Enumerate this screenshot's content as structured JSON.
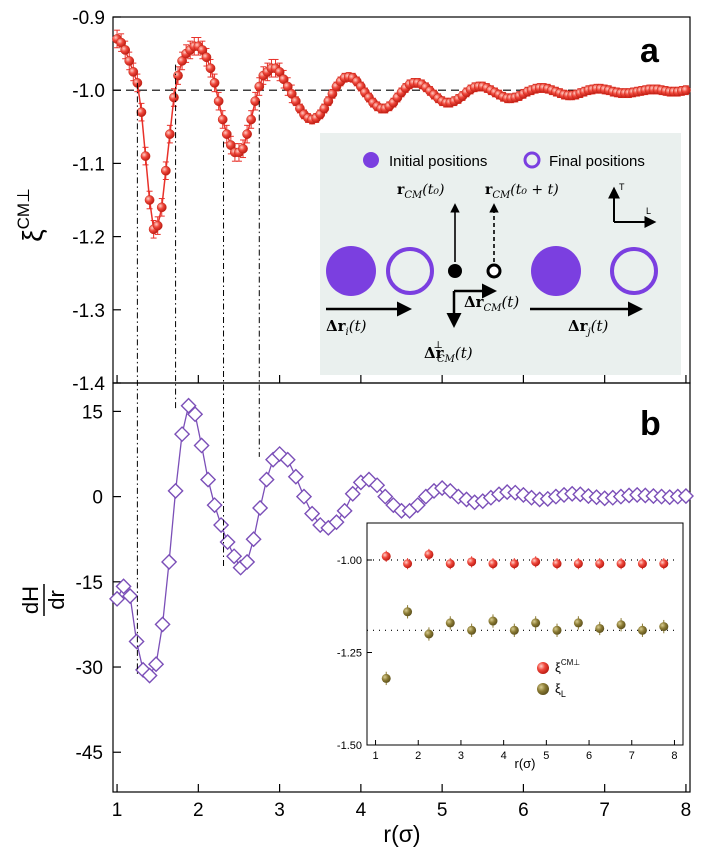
{
  "chart_data": [
    {
      "panel_label": "a",
      "type": "line",
      "ylabel": "ξ",
      "ylabel_sup": "CM⊥",
      "xlim": [
        0.95,
        8.05
      ],
      "ylim": [
        -1.4,
        -0.9
      ],
      "y_ticks": [
        "-0.9",
        "-1.0",
        "-1.1",
        "-1.2",
        "-1.3",
        "-1.4"
      ],
      "reference_line": -1.0,
      "series": [
        {
          "name": "ξCM⊥",
          "color": "#e8312a",
          "x": [
            1.0,
            1.05,
            1.1,
            1.15,
            1.2,
            1.25,
            1.3,
            1.35,
            1.4,
            1.45,
            1.5,
            1.55,
            1.6,
            1.65,
            1.7,
            1.75,
            1.8,
            1.85,
            1.9,
            1.95,
            2.0,
            2.05,
            2.1,
            2.15,
            2.2,
            2.25,
            2.3,
            2.35,
            2.4,
            2.45,
            2.5,
            2.55,
            2.6,
            2.65,
            2.7,
            2.75,
            2.8,
            2.85,
            2.9,
            2.95,
            3.0,
            3.05,
            3.1,
            3.15,
            3.2,
            3.25,
            3.3,
            3.35,
            3.4,
            3.45,
            3.5,
            3.55,
            3.6,
            3.65,
            3.7,
            3.75,
            3.8,
            3.85,
            3.9,
            3.95,
            4.0,
            4.05,
            4.1,
            4.15,
            4.2,
            4.25,
            4.3,
            4.35,
            4.4,
            4.45,
            4.5,
            4.55,
            4.6,
            4.65,
            4.7,
            4.75,
            4.8,
            4.85,
            4.9,
            4.95,
            5.0,
            5.05,
            5.1,
            5.15,
            5.2,
            5.25,
            5.3,
            5.35,
            5.4,
            5.45,
            5.5,
            5.55,
            5.6,
            5.65,
            5.7,
            5.75,
            5.8,
            5.85,
            5.9,
            5.95,
            6.0,
            6.05,
            6.1,
            6.15,
            6.2,
            6.25,
            6.3,
            6.35,
            6.4,
            6.45,
            6.5,
            6.55,
            6.6,
            6.65,
            6.7,
            6.75,
            6.8,
            6.85,
            6.9,
            6.95,
            7.0,
            7.05,
            7.1,
            7.15,
            7.2,
            7.25,
            7.3,
            7.35,
            7.4,
            7.45,
            7.5,
            7.55,
            7.6,
            7.65,
            7.7,
            7.75,
            7.8,
            7.85,
            7.9,
            7.95,
            8.0
          ],
          "y": [
            -0.93,
            -0.935,
            -0.945,
            -0.96,
            -0.975,
            -0.99,
            -1.03,
            -1.09,
            -1.15,
            -1.19,
            -1.185,
            -1.16,
            -1.11,
            -1.06,
            -1.01,
            -0.98,
            -0.96,
            -0.95,
            -0.945,
            -0.94,
            -0.94,
            -0.945,
            -0.955,
            -0.97,
            -0.99,
            -1.015,
            -1.04,
            -1.06,
            -1.075,
            -1.085,
            -1.085,
            -1.08,
            -1.06,
            -1.04,
            -1.015,
            -0.995,
            -0.98,
            -0.975,
            -0.97,
            -0.97,
            -0.975,
            -0.985,
            -0.995,
            -1.005,
            -1.015,
            -1.025,
            -1.033,
            -1.038,
            -1.04,
            -1.038,
            -1.033,
            -1.025,
            -1.015,
            -1.005,
            -0.995,
            -0.988,
            -0.983,
            -0.982,
            -0.983,
            -0.988,
            -0.995,
            -1.003,
            -1.01,
            -1.017,
            -1.022,
            -1.025,
            -1.025,
            -1.022,
            -1.017,
            -1.01,
            -1.003,
            -0.997,
            -0.992,
            -0.99,
            -0.99,
            -0.992,
            -0.996,
            -1.001,
            -1.006,
            -1.011,
            -1.015,
            -1.017,
            -1.017,
            -1.015,
            -1.012,
            -1.008,
            -1.003,
            -0.999,
            -0.996,
            -0.995,
            -0.995,
            -0.997,
            -1.0,
            -1.003,
            -1.006,
            -1.009,
            -1.011,
            -1.011,
            -1.01,
            -1.008,
            -1.005,
            -1.002,
            -1.0,
            -0.998,
            -0.997,
            -0.997,
            -0.998,
            -1.0,
            -1.002,
            -1.004,
            -1.006,
            -1.007,
            -1.007,
            -1.006,
            -1.004,
            -1.002,
            -1.0,
            -0.999,
            -0.998,
            -0.998,
            -0.999,
            -1.0,
            -1.002,
            -1.003,
            -1.004,
            -1.004,
            -1.004,
            -1.003,
            -1.002,
            -1.001,
            -1.0,
            -0.999,
            -0.999,
            -0.999,
            -1.0,
            -1.001,
            -1.002,
            -1.002,
            -1.002,
            -1.001,
            -1.0
          ]
        }
      ],
      "inset_diagram": {
        "legend_initial": "Initial positions",
        "legend_final": "Final positions",
        "axis_T": "T",
        "axis_L": "L",
        "label_rcm_t0": "𝐫",
        "label_rcm_t0_sub": "CM",
        "label_rcm_t0_arg": "(t₀)",
        "label_rcm_t0t": "𝐫",
        "label_rcm_t0t_sub": "CM",
        "label_rcm_t0t_arg": "(t₀ + t)",
        "label_dri": "Δ𝐫",
        "label_dri_sub": "i",
        "label_dri_arg": "(t)",
        "label_drj": "Δ𝐫",
        "label_drj_sub": "j",
        "label_drj_arg": "(t)",
        "label_drcm": "Δ𝐫",
        "label_drcm_sub": "CM",
        "label_drcm_arg": "(t)",
        "label_drcmperp": "Δ𝐫",
        "label_drcmperp_sup": "⊥",
        "label_drcmperp_sub": "CM",
        "label_drcmperp_arg": "(t)"
      }
    },
    {
      "panel_label": "b",
      "type": "line",
      "ylabel_num": "dH",
      "ylabel_den": "dr",
      "xlabel": "r(σ)",
      "xlim": [
        0.95,
        8.05
      ],
      "ylim": [
        -52,
        20
      ],
      "x_ticks": [
        "1",
        "2",
        "3",
        "4",
        "5",
        "6",
        "7",
        "8"
      ],
      "y_ticks": [
        "15",
        "0",
        "-15",
        "-30",
        "-45"
      ],
      "series": [
        {
          "name": "dH/dr",
          "color": "#7b4fb8",
          "x": [
            1.0,
            1.08,
            1.16,
            1.24,
            1.32,
            1.4,
            1.48,
            1.56,
            1.64,
            1.72,
            1.8,
            1.88,
            1.96,
            2.04,
            2.12,
            2.2,
            2.28,
            2.36,
            2.44,
            2.52,
            2.6,
            2.68,
            2.76,
            2.84,
            2.92,
            3.0,
            3.1,
            3.2,
            3.3,
            3.4,
            3.5,
            3.6,
            3.7,
            3.8,
            3.9,
            4.0,
            4.1,
            4.2,
            4.3,
            4.4,
            4.5,
            4.6,
            4.7,
            4.8,
            4.9,
            5.0,
            5.1,
            5.2,
            5.3,
            5.4,
            5.5,
            5.6,
            5.7,
            5.8,
            5.9,
            6.0,
            6.1,
            6.2,
            6.3,
            6.4,
            6.5,
            6.6,
            6.7,
            6.8,
            6.9,
            7.0,
            7.1,
            7.2,
            7.3,
            7.4,
            7.5,
            7.6,
            7.7,
            7.8,
            7.9,
            8.0
          ],
          "y": [
            -18.0,
            -15.8,
            -17.5,
            -25.5,
            -30.5,
            -31.5,
            -29.5,
            -22.5,
            -11.5,
            1.0,
            11.0,
            16.0,
            14.5,
            9.0,
            3.0,
            -1.5,
            -5.0,
            -8.0,
            -10.5,
            -12.5,
            -11.5,
            -7.5,
            -2.0,
            3.0,
            6.5,
            7.5,
            6.5,
            3.5,
            0.0,
            -3.0,
            -5.0,
            -5.5,
            -4.5,
            -2.5,
            0.5,
            2.5,
            3.0,
            2.0,
            0.0,
            -1.5,
            -2.5,
            -2.5,
            -1.5,
            0.0,
            1.0,
            1.5,
            1.0,
            0.0,
            -0.5,
            -1.0,
            -0.8,
            -0.2,
            0.4,
            0.8,
            0.7,
            0.3,
            -0.2,
            -0.5,
            -0.4,
            0.0,
            0.3,
            0.5,
            0.4,
            0.1,
            -0.1,
            -0.3,
            -0.2,
            0.0,
            0.2,
            0.3,
            0.2,
            0.1,
            0.0,
            -0.1,
            0.0,
            0.1
          ]
        }
      ],
      "inset": {
        "xlabel": "r(σ)",
        "xlim": [
          0.8,
          8.2
        ],
        "ylim": [
          -1.5,
          -0.9
        ],
        "x_ticks": [
          "1",
          "2",
          "3",
          "4",
          "5",
          "6",
          "7",
          "8"
        ],
        "y_ticks": [
          "-1.00",
          "-1.25",
          "-1.50"
        ],
        "ref_lines": [
          -1.0,
          -1.19
        ],
        "series": [
          {
            "name": "ξ",
            "legend_sup": "CM⊥",
            "color": "#e8312a",
            "x": [
              1.25,
              1.75,
              2.25,
              2.75,
              3.25,
              3.75,
              4.25,
              4.75,
              5.25,
              5.75,
              6.25,
              6.75,
              7.25,
              7.75
            ],
            "y": [
              -0.99,
              -1.01,
              -0.985,
              -1.01,
              -1.005,
              -1.01,
              -1.01,
              -1.005,
              -1.01,
              -1.01,
              -1.01,
              -1.01,
              -1.01,
              -1.01
            ]
          },
          {
            "name": "ξ",
            "legend_sub": "L",
            "color": "#8a7a33",
            "x": [
              1.25,
              1.75,
              2.25,
              2.75,
              3.25,
              3.75,
              4.25,
              4.75,
              5.25,
              5.75,
              6.25,
              6.75,
              7.25,
              7.75
            ],
            "y": [
              -1.32,
              -1.14,
              -1.2,
              -1.17,
              -1.19,
              -1.165,
              -1.19,
              -1.17,
              -1.19,
              -1.17,
              -1.185,
              -1.175,
              -1.19,
              -1.18
            ]
          }
        ]
      }
    }
  ]
}
